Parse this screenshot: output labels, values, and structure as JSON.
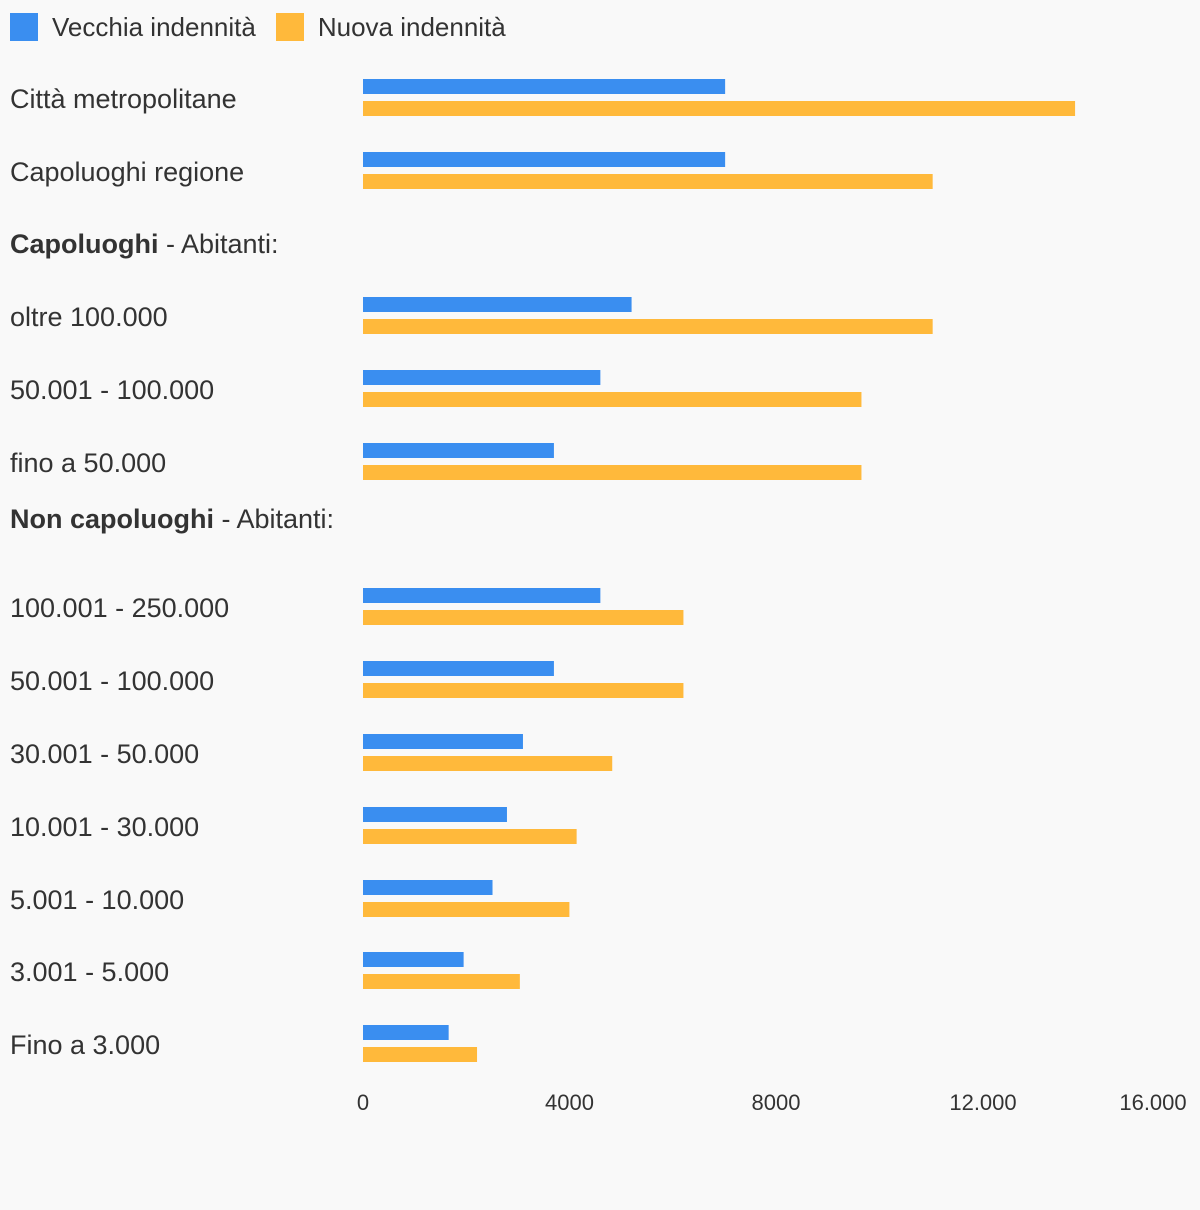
{
  "legend": {
    "old_label": "Vecchia indennità",
    "new_label": "Nuova indennità"
  },
  "colors": {
    "old": "#3a8ef0",
    "new": "#ffb93b",
    "background": "#f9f9f9",
    "text": "#333333"
  },
  "chart_data": {
    "type": "bar",
    "orientation": "horizontal",
    "xlim": [
      0,
      16000
    ],
    "ticks": [
      "0",
      "4000",
      "8000",
      "12.000",
      "16.000"
    ],
    "tick_values": [
      0,
      4000,
      8000,
      12000,
      16000
    ],
    "grid": false,
    "legend_position": "top-left",
    "rows": [
      {
        "kind": "category",
        "label": "Città metropolitane",
        "old": 7018,
        "new": 13800
      },
      {
        "kind": "category",
        "label": "Capoluoghi regione",
        "old": 7018,
        "new": 11040
      },
      {
        "kind": "section",
        "bold": "Capoluoghi",
        "rest": " - Abitanti:"
      },
      {
        "kind": "category",
        "label": "oltre 100.000",
        "old": 5205,
        "new": 11040
      },
      {
        "kind": "category",
        "label": "50.001 - 100.000",
        "old": 4600,
        "new": 9660
      },
      {
        "kind": "category",
        "label": "fino a 50.000",
        "old": 3700,
        "new": 9660
      },
      {
        "kind": "section",
        "bold": "Non capoluoghi",
        "rest": " - Abitanti:"
      },
      {
        "kind": "category",
        "label": "100.001 - 250.000",
        "old": 4600,
        "new": 6210
      },
      {
        "kind": "category",
        "label": "50.001 - 100.000",
        "old": 3700,
        "new": 6210
      },
      {
        "kind": "category",
        "label": "30.001 - 50.000",
        "old": 3100,
        "new": 4830
      },
      {
        "kind": "category",
        "label": "10.001 - 30.000",
        "old": 2790,
        "new": 4140
      },
      {
        "kind": "category",
        "label": "5.001 - 10.000",
        "old": 2510,
        "new": 4000
      },
      {
        "kind": "category",
        "label": "3.001 - 5.000",
        "old": 1950,
        "new": 3040
      },
      {
        "kind": "category",
        "label": "Fino a 3.000",
        "old": 1660,
        "new": 2210
      }
    ]
  }
}
